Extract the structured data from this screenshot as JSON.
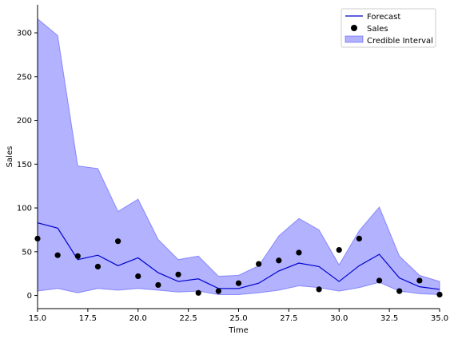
{
  "chart_data": {
    "type": "line",
    "title": "",
    "xlabel": "Time",
    "ylabel": "Sales",
    "xlim": [
      15.0,
      35.0
    ],
    "ylim": [
      -15,
      332
    ],
    "xticks": [
      15.0,
      17.5,
      20.0,
      22.5,
      25.0,
      27.5,
      30.0,
      32.5,
      35.0
    ],
    "xtick_labels": [
      "15.0",
      "17.5",
      "20.0",
      "22.5",
      "25.0",
      "27.5",
      "30.0",
      "32.5",
      "35.0"
    ],
    "yticks": [
      0,
      50,
      100,
      150,
      200,
      250,
      300
    ],
    "ytick_labels": [
      "0",
      "50",
      "100",
      "150",
      "200",
      "250",
      "300"
    ],
    "grid": false,
    "legend_position": "top-right",
    "x": [
      15,
      16,
      17,
      18,
      19,
      20,
      21,
      22,
      23,
      24,
      25,
      26,
      27,
      28,
      29,
      30,
      31,
      32,
      33,
      34,
      35
    ],
    "series": [
      {
        "name": "Forecast",
        "kind": "line",
        "color": "#0000cc",
        "values": [
          83,
          77,
          41,
          46,
          34,
          43,
          26,
          16,
          19,
          8,
          8,
          14,
          28,
          37,
          33,
          16,
          34,
          47,
          20,
          10,
          7
        ]
      },
      {
        "name": "Sales",
        "kind": "scatter",
        "color": "#000000",
        "values": [
          65,
          46,
          45,
          33,
          62,
          22,
          12,
          24,
          3,
          5,
          14,
          36,
          40,
          49,
          7,
          52,
          65,
          17,
          5,
          17,
          1
        ]
      },
      {
        "name": "Credible Interval",
        "kind": "band",
        "color": "#0000ff",
        "upper": [
          316,
          297,
          148,
          145,
          96,
          110,
          64,
          41,
          45,
          22,
          23,
          34,
          68,
          88,
          75,
          35,
          74,
          101,
          45,
          23,
          16
        ],
        "lower": [
          5,
          8,
          3,
          8,
          6,
          8,
          6,
          4,
          5,
          1,
          1,
          3,
          6,
          11,
          9,
          5,
          9,
          15,
          5,
          2,
          1
        ]
      }
    ]
  }
}
